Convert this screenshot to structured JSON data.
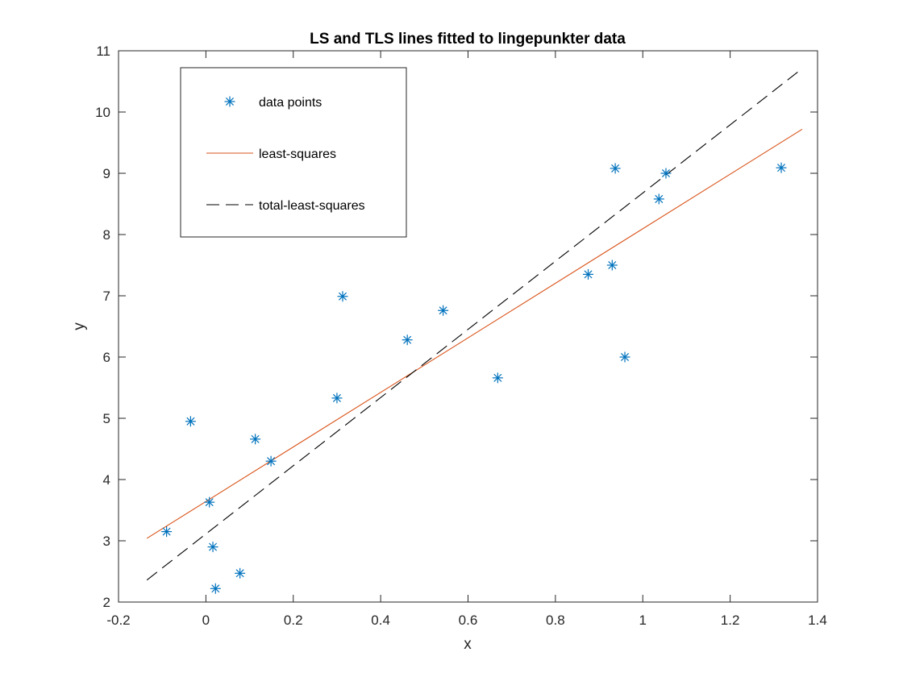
{
  "chart_data": {
    "type": "scatter",
    "title": "LS and TLS lines fitted to lingepunkter data",
    "xlabel": "x",
    "ylabel": "y",
    "xlim": [
      -0.2,
      1.4
    ],
    "ylim": [
      2,
      11
    ],
    "xticks": [
      -0.2,
      0,
      0.2,
      0.4,
      0.6,
      0.8,
      1,
      1.2,
      1.4
    ],
    "xtick_labels": [
      "-0.2",
      "0",
      "0.2",
      "0.4",
      "0.6",
      "0.8",
      "1",
      "1.2",
      "1.4"
    ],
    "yticks": [
      2,
      3,
      4,
      5,
      6,
      7,
      8,
      9,
      10,
      11
    ],
    "ytick_labels": [
      "2",
      "3",
      "4",
      "5",
      "6",
      "7",
      "8",
      "9",
      "10",
      "11"
    ],
    "grid": false,
    "legend_position": "top-left",
    "series": [
      {
        "name": "data points",
        "kind": "scatter",
        "marker": "asterisk",
        "color": "#0072bd",
        "points": [
          [
            -0.09,
            3.15
          ],
          [
            -0.035,
            4.95
          ],
          [
            0.008,
            3.63
          ],
          [
            0.016,
            2.9
          ],
          [
            0.022,
            2.22
          ],
          [
            0.078,
            2.47
          ],
          [
            0.113,
            4.66
          ],
          [
            0.149,
            4.3
          ],
          [
            0.3,
            5.33
          ],
          [
            0.313,
            6.99
          ],
          [
            0.461,
            6.28
          ],
          [
            0.543,
            6.76
          ],
          [
            0.668,
            5.66
          ],
          [
            0.875,
            7.35
          ],
          [
            0.93,
            7.5
          ],
          [
            0.937,
            9.08
          ],
          [
            0.959,
            6.0
          ],
          [
            1.037,
            8.58
          ],
          [
            1.053,
            9.0
          ],
          [
            1.317,
            9.09
          ]
        ]
      },
      {
        "name": "least-squares",
        "kind": "line",
        "style": "solid",
        "color": "#d95319",
        "points": [
          [
            -0.135,
            3.04
          ],
          [
            1.365,
            9.72
          ]
        ]
      },
      {
        "name": "total-least-squares",
        "kind": "line",
        "style": "dashed",
        "color": "#000000",
        "points": [
          [
            -0.135,
            2.36
          ],
          [
            1.365,
            10.71
          ]
        ]
      }
    ]
  }
}
